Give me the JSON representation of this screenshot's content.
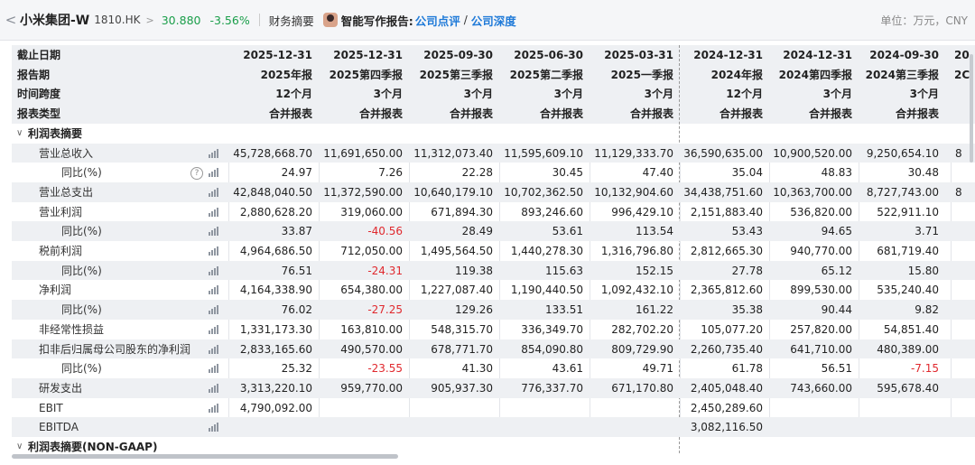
{
  "topbar": {
    "back_glyph": "<",
    "company": "小米集团-W",
    "code": "1810.HK",
    "chevron": ">",
    "price": "30.880",
    "change_pct": "-3.56%",
    "section": "财务摘要",
    "report_label": "智能写作报告:",
    "link1": "公司点评",
    "slash": "/",
    "link2": "公司深度",
    "unit": "单位：万元，CNY"
  },
  "header": {
    "labels": [
      "截止日期",
      "报告期",
      "时间跨度",
      "报表类型"
    ],
    "columns": [
      {
        "date": "2025-12-31",
        "period": "2025年报",
        "span": "12个月",
        "type": "合并报表"
      },
      {
        "date": "2025-12-31",
        "period": "2025第四季报",
        "span": "3个月",
        "type": "合并报表"
      },
      {
        "date": "2025-09-30",
        "period": "2025第三季报",
        "span": "3个月",
        "type": "合并报表"
      },
      {
        "date": "2025-06-30",
        "period": "2025第二季报",
        "span": "3个月",
        "type": "合并报表"
      },
      {
        "date": "2025-03-31",
        "period": "2025一季报",
        "span": "3个月",
        "type": "合并报表"
      },
      {
        "date": "2024-12-31",
        "period": "2024年报",
        "span": "12个月",
        "type": "合并报表"
      },
      {
        "date": "2024-12-31",
        "period": "2024第四季报",
        "span": "3个月",
        "type": "合并报表"
      },
      {
        "date": "2024-09-30",
        "period": "2024第三季报",
        "span": "3个月",
        "type": "合并报表"
      },
      {
        "date": "20",
        "period": "2C",
        "span": "",
        "type": ""
      }
    ]
  },
  "sections": {
    "income_summary": "利润表摘要",
    "non_gaap": "利润表摘要(NON-GAAP)"
  },
  "rows": [
    {
      "label": "营业总收入",
      "indent": 1,
      "values": [
        "45,728,668.70",
        "11,691,650.00",
        "11,312,073.40",
        "11,595,609.10",
        "11,129,333.70",
        "36,590,635.00",
        "10,900,520.00",
        "9,250,654.10",
        "8"
      ],
      "red": []
    },
    {
      "label": "同比(%)",
      "indent": 2,
      "help": true,
      "values": [
        "24.97",
        "7.26",
        "22.28",
        "30.45",
        "47.40",
        "35.04",
        "48.83",
        "30.48",
        ""
      ],
      "red": []
    },
    {
      "label": "营业总支出",
      "indent": 1,
      "values": [
        "42,848,040.50",
        "11,372,590.00",
        "10,640,179.10",
        "10,702,362.50",
        "10,132,904.60",
        "34,438,751.60",
        "10,363,700.00",
        "8,727,743.00",
        "8"
      ],
      "red": []
    },
    {
      "label": "营业利润",
      "indent": 1,
      "values": [
        "2,880,628.20",
        "319,060.00",
        "671,894.30",
        "893,246.60",
        "996,429.10",
        "2,151,883.40",
        "536,820.00",
        "522,911.10",
        ""
      ],
      "red": []
    },
    {
      "label": "同比(%)",
      "indent": 2,
      "values": [
        "33.87",
        "-40.56",
        "28.49",
        "53.61",
        "113.54",
        "53.43",
        "94.65",
        "3.71",
        ""
      ],
      "red": [
        1
      ]
    },
    {
      "label": "税前利润",
      "indent": 1,
      "values": [
        "4,964,686.50",
        "712,050.00",
        "1,495,564.50",
        "1,440,278.30",
        "1,316,796.80",
        "2,812,665.30",
        "940,770.00",
        "681,719.40",
        ""
      ],
      "red": []
    },
    {
      "label": "同比(%)",
      "indent": 2,
      "values": [
        "76.51",
        "-24.31",
        "119.38",
        "115.63",
        "152.15",
        "27.78",
        "65.12",
        "15.80",
        ""
      ],
      "red": [
        1
      ]
    },
    {
      "label": "净利润",
      "indent": 1,
      "values": [
        "4,164,338.90",
        "654,380.00",
        "1,227,087.40",
        "1,190,440.50",
        "1,092,432.10",
        "2,365,812.60",
        "899,530.00",
        "535,240.40",
        ""
      ],
      "red": []
    },
    {
      "label": "同比(%)",
      "indent": 2,
      "values": [
        "76.02",
        "-27.25",
        "129.26",
        "133.51",
        "161.22",
        "35.38",
        "90.44",
        "9.82",
        ""
      ],
      "red": [
        1
      ]
    },
    {
      "label": "非经常性损益",
      "indent": 1,
      "values": [
        "1,331,173.30",
        "163,810.00",
        "548,315.70",
        "336,349.70",
        "282,702.20",
        "105,077.20",
        "257,820.00",
        "54,851.40",
        ""
      ],
      "red": []
    },
    {
      "label": "扣非后归属母公司股东的净利润",
      "indent": 1,
      "values": [
        "2,833,165.60",
        "490,570.00",
        "678,771.70",
        "854,090.80",
        "809,729.90",
        "2,260,735.40",
        "641,710.00",
        "480,389.00",
        ""
      ],
      "red": []
    },
    {
      "label": "同比(%)",
      "indent": 2,
      "values": [
        "25.32",
        "-23.55",
        "41.30",
        "43.61",
        "49.71",
        "61.78",
        "56.51",
        "-7.15",
        ""
      ],
      "red": [
        1,
        7
      ]
    },
    {
      "label": "研发支出",
      "indent": 1,
      "values": [
        "3,313,220.10",
        "959,770.00",
        "905,937.30",
        "776,337.70",
        "671,170.80",
        "2,405,048.40",
        "743,660.00",
        "595,678.40",
        ""
      ],
      "red": []
    },
    {
      "label": "EBIT",
      "indent": 1,
      "values": [
        "4,790,092.00",
        "",
        "",
        "",
        "",
        "2,450,289.60",
        "",
        "",
        ""
      ],
      "red": []
    },
    {
      "label": "EBITDA",
      "indent": 1,
      "values": [
        "",
        "",
        "",
        "",
        "",
        "3,082,116.50",
        "",
        "",
        ""
      ],
      "red": []
    }
  ],
  "icons": {
    "toggle": "chevron-down-icon",
    "chart": "bar-chart-icon",
    "help": "question-icon"
  },
  "help_glyph": "?",
  "toggle_glyph": "∨"
}
